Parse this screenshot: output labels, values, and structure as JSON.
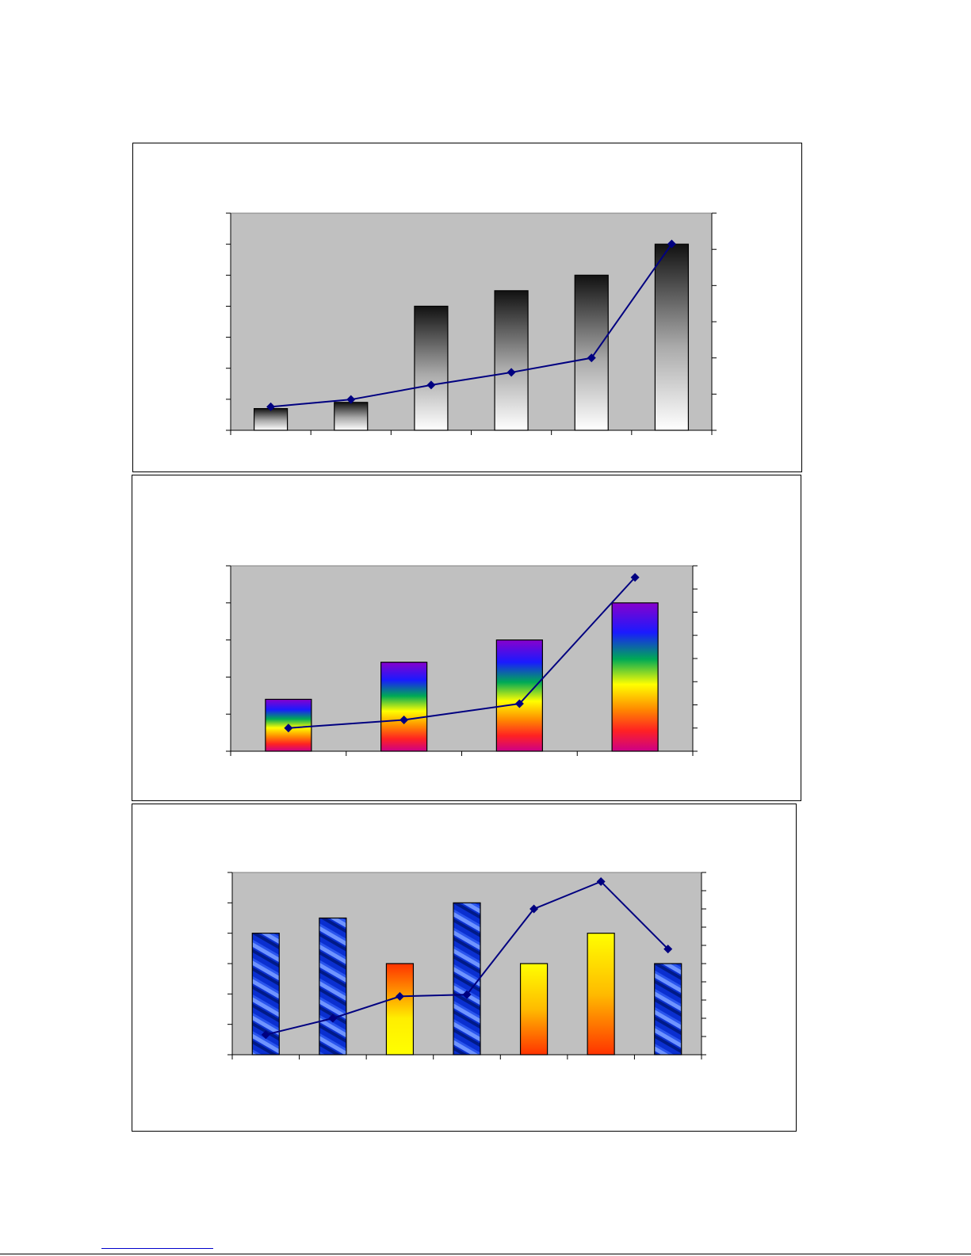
{
  "colors": {
    "plot_bg": "#c0c0c0",
    "line": "#000080",
    "frame": "#000000"
  },
  "chart_data": [
    {
      "type": "bar",
      "title": "",
      "bar_style": "gray-gradient",
      "categories": [
        "",
        "",
        "",
        "",
        "",
        ""
      ],
      "series": [
        {
          "values": [
            0.7,
            0.9,
            4.0,
            4.5,
            5.0,
            6.0
          ],
          "axis": "left"
        },
        {
          "type": "line",
          "marker": "diamond",
          "values": [
            0.65,
            0.85,
            1.25,
            1.6,
            2.0,
            5.15
          ],
          "axis": "right"
        }
      ],
      "ylim": [
        0,
        7
      ],
      "yticks": 7,
      "y2lim": [
        0,
        6
      ],
      "y2ticks": 6
    },
    {
      "type": "bar",
      "title": "",
      "bar_style": "rainbow-gradient",
      "categories": [
        "",
        "",
        "",
        ""
      ],
      "series": [
        {
          "values": [
            1.4,
            2.4,
            3.0,
            4.0
          ],
          "axis": "left"
        },
        {
          "type": "line",
          "marker": "diamond",
          "values": [
            1.0,
            1.35,
            2.05,
            7.5
          ],
          "axis": "right"
        }
      ],
      "ylim": [
        0,
        5
      ],
      "yticks": 5,
      "y2lim": [
        0,
        8
      ],
      "y2ticks": 8
    },
    {
      "type": "bar",
      "title": "",
      "bar_style": "blue-striped / yellow-orange gradient",
      "categories": [
        "",
        "",
        "",
        "",
        "",
        "",
        ""
      ],
      "series": [
        {
          "values": [
            4.0,
            4.5,
            3.0,
            5.0,
            3.0,
            4.0,
            3.0
          ],
          "axis": "left",
          "fills": [
            "blue",
            "blue",
            "warm-up",
            "blue",
            "warm-down",
            "warm-down",
            "blue"
          ]
        },
        {
          "type": "line",
          "marker": "diamond",
          "values": [
            1.1,
            2.0,
            3.2,
            3.3,
            8.0,
            9.5,
            5.8
          ],
          "axis": "right"
        }
      ],
      "ylim": [
        0,
        6
      ],
      "yticks": 6,
      "y2lim": [
        0,
        10
      ],
      "y2ticks": 10
    }
  ]
}
